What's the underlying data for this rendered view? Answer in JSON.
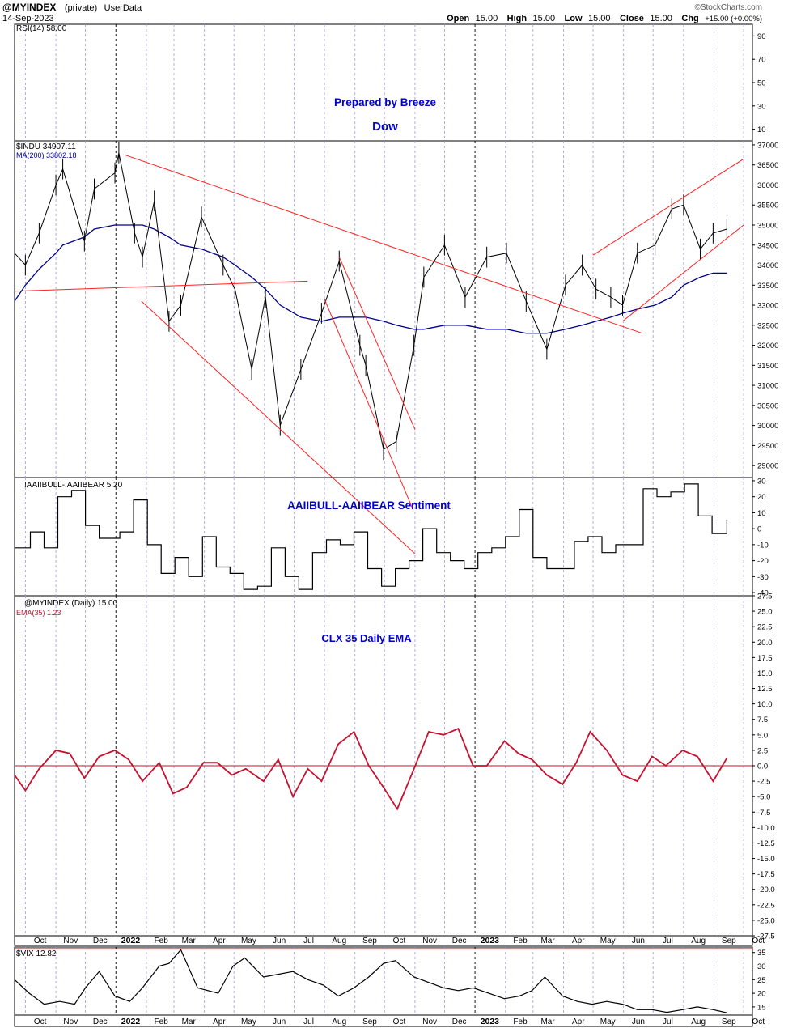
{
  "header": {
    "symbol": "@MYINDEX",
    "mode": "(private)",
    "source": "UserData",
    "date": "14-Sep-2023",
    "ohlc": [
      {
        "label": "Open",
        "value": "15.00"
      },
      {
        "label": "High",
        "value": "15.00"
      },
      {
        "label": "Low",
        "value": "15.00"
      },
      {
        "label": "Close",
        "value": "15.00"
      },
      {
        "label": "Chg",
        "value": "+15.00 (+0.00%)"
      }
    ],
    "watermark": "©StockCharts.com"
  },
  "colors": {
    "price": "#000000",
    "ma": "#00008b",
    "trendline": "#ff2020",
    "ema": "#c8102e",
    "note": "#0000cc",
    "grid_month": "#9a9ad8",
    "grid_year": "#000000"
  },
  "time_axis": {
    "months": [
      "Oct",
      "Nov",
      "Dec",
      "2022",
      "Feb",
      "Mar",
      "Apr",
      "May",
      "Jun",
      "Jul",
      "Aug",
      "Sep",
      "Oct",
      "Nov",
      "Dec",
      "2023",
      "Feb",
      "Mar",
      "Apr",
      "May",
      "Jun",
      "Jul",
      "Aug",
      "Sep",
      "Oct"
    ],
    "start": "2021-09-20",
    "end": "2023-10-10"
  },
  "chart_data": [
    {
      "type": "line",
      "panel": "rsi",
      "legend": "RSI(14) 58.00",
      "ytick_labels": [
        "90",
        "70",
        "50",
        "30",
        "10"
      ],
      "ylim": [
        0,
        100
      ],
      "annotations": [
        "Prepared by Breeze",
        "Dow"
      ],
      "series": []
    },
    {
      "type": "line",
      "panel": "price",
      "legend": [
        "$INDU 34907.11",
        "MA(200) 33802.18"
      ],
      "ytick_labels": [
        "37000",
        "36500",
        "36000",
        "35500",
        "35000",
        "34500",
        "34000",
        "33500",
        "33000",
        "32500",
        "32000",
        "31500",
        "31000",
        "30500",
        "30000",
        "29500",
        "29000"
      ],
      "ylim": [
        28700,
        37100
      ],
      "x": [
        "2021-09-20",
        "2021-10-01",
        "2021-10-15",
        "2021-11-01",
        "2021-11-08",
        "2021-11-30",
        "2021-12-10",
        "2021-12-31",
        "2022-01-04",
        "2022-01-20",
        "2022-01-28",
        "2022-02-09",
        "2022-02-24",
        "2022-03-08",
        "2022-03-29",
        "2022-04-20",
        "2022-05-02",
        "2022-05-19",
        "2022-06-02",
        "2022-06-17",
        "2022-07-08",
        "2022-07-29",
        "2022-08-16",
        "2022-09-06",
        "2022-09-12",
        "2022-09-30",
        "2022-10-13",
        "2022-10-31",
        "2022-11-10",
        "2022-12-01",
        "2022-12-22",
        "2023-01-13",
        "2023-02-02",
        "2023-02-22",
        "2023-03-15",
        "2023-04-03",
        "2023-04-20",
        "2023-05-04",
        "2023-05-19",
        "2023-05-31",
        "2023-06-15",
        "2023-07-03",
        "2023-07-20",
        "2023-08-01",
        "2023-08-18",
        "2023-08-31",
        "2023-09-14"
      ],
      "series": [
        {
          "name": "$INDU",
          "values": [
            34300,
            34000,
            34800,
            36000,
            36400,
            34600,
            35900,
            36300,
            36800,
            34800,
            34200,
            35600,
            32600,
            33000,
            35200,
            34000,
            33400,
            31400,
            33200,
            30000,
            31400,
            32800,
            34100,
            32000,
            31500,
            29400,
            29600,
            32000,
            33700,
            34500,
            33200,
            34200,
            34300,
            33100,
            31900,
            33500,
            34000,
            33400,
            33200,
            33000,
            34300,
            34500,
            35400,
            35500,
            34400,
            34800,
            34900
          ]
        },
        {
          "name": "MA(200)",
          "values": [
            33100,
            33500,
            33900,
            34300,
            34500,
            34700,
            34900,
            35000,
            35000,
            35000,
            35000,
            34900,
            34700,
            34500,
            34400,
            34200,
            34000,
            33700,
            33400,
            33000,
            32700,
            32600,
            32700,
            32700,
            32700,
            32600,
            32500,
            32400,
            32400,
            32500,
            32500,
            32400,
            32400,
            32300,
            32300,
            32400,
            32500,
            32600,
            32700,
            32800,
            32900,
            33000,
            33200,
            33500,
            33700,
            33800,
            33800
          ]
        }
      ]
    },
    {
      "type": "line",
      "panel": "sentiment",
      "legend": "!AAIIBULL-!AAIIBEAR 5.20",
      "ytick_labels": [
        "30",
        "20",
        "10",
        "0",
        "-10",
        "-20",
        "-30",
        "-40"
      ],
      "ylim": [
        -42,
        32
      ],
      "annotations": [
        "AAIIBULL-AAIIBEAR Sentiment"
      ],
      "x": [
        "2021-09-20",
        "2021-10-06",
        "2021-10-20",
        "2021-11-03",
        "2021-11-17",
        "2021-12-01",
        "2021-12-15",
        "2022-01-05",
        "2022-01-19",
        "2022-02-02",
        "2022-02-16",
        "2022-03-02",
        "2022-03-16",
        "2022-03-30",
        "2022-04-13",
        "2022-04-27",
        "2022-05-11",
        "2022-05-25",
        "2022-06-08",
        "2022-06-22",
        "2022-07-06",
        "2022-07-20",
        "2022-08-03",
        "2022-08-17",
        "2022-08-31",
        "2022-09-14",
        "2022-09-28",
        "2022-10-12",
        "2022-10-26",
        "2022-11-09",
        "2022-11-23",
        "2022-12-07",
        "2022-12-21",
        "2023-01-04",
        "2023-01-18",
        "2023-02-01",
        "2023-02-15",
        "2023-03-01",
        "2023-03-15",
        "2023-03-29",
        "2023-04-12",
        "2023-04-26",
        "2023-05-10",
        "2023-05-24",
        "2023-06-07",
        "2023-06-21",
        "2023-07-05",
        "2023-07-19",
        "2023-08-02",
        "2023-08-16",
        "2023-08-30",
        "2023-09-14"
      ],
      "series": [
        {
          "name": "AAIIBULL-AAIIBEAR",
          "values": [
            -12,
            -2,
            -12,
            20,
            24,
            2,
            -6,
            -2,
            18,
            -10,
            -28,
            -18,
            -30,
            -5,
            -24,
            -28,
            -38,
            -36,
            -12,
            -30,
            -38,
            -15,
            -7,
            -10,
            -2,
            -25,
            -36,
            -25,
            -20,
            0,
            -15,
            -20,
            -25,
            -15,
            -12,
            -5,
            12,
            -18,
            -25,
            -25,
            -8,
            -5,
            -15,
            -10,
            -10,
            25,
            20,
            23,
            28,
            8,
            -3,
            5.2
          ]
        }
      ]
    },
    {
      "type": "line",
      "panel": "ema",
      "legend": [
        "@MYINDEX (Daily) 15.00",
        "EMA(35) 1.23"
      ],
      "ytick_labels": [
        "27.5",
        "25.0",
        "22.5",
        "20.0",
        "17.5",
        "15.0",
        "12.5",
        "10.0",
        "7.5",
        "5.0",
        "2.5",
        "0.0",
        "-2.5",
        "-5.0",
        "-7.5",
        "-10.0",
        "-12.5",
        "-15.0",
        "-17.5",
        "-20.0",
        "-22.5",
        "-25.0",
        "-27.5"
      ],
      "ylim": [
        -27.5,
        27.5
      ],
      "annotations": [
        "CLX 35 Daily EMA"
      ],
      "x": [
        "2021-09-20",
        "2021-10-01",
        "2021-10-15",
        "2021-11-01",
        "2021-11-15",
        "2021-11-30",
        "2021-12-15",
        "2021-12-31",
        "2022-01-14",
        "2022-01-28",
        "2022-02-14",
        "2022-02-28",
        "2022-03-14",
        "2022-03-31",
        "2022-04-14",
        "2022-04-29",
        "2022-05-13",
        "2022-05-31",
        "2022-06-15",
        "2022-06-30",
        "2022-07-15",
        "2022-07-29",
        "2022-08-15",
        "2022-08-31",
        "2022-09-15",
        "2022-09-30",
        "2022-10-14",
        "2022-10-31",
        "2022-11-15",
        "2022-11-30",
        "2022-12-15",
        "2022-12-30",
        "2023-01-13",
        "2023-01-31",
        "2023-02-14",
        "2023-02-28",
        "2023-03-15",
        "2023-03-31",
        "2023-04-14",
        "2023-04-28",
        "2023-05-15",
        "2023-05-31",
        "2023-06-15",
        "2023-06-30",
        "2023-07-14",
        "2023-07-31",
        "2023-08-15",
        "2023-08-31",
        "2023-09-14"
      ],
      "series": [
        {
          "name": "EMA(35)",
          "values": [
            -1.5,
            -4.0,
            -0.5,
            2.5,
            2.0,
            -2.0,
            1.5,
            2.5,
            1.0,
            -2.5,
            0.5,
            -4.5,
            -3.5,
            0.5,
            0.5,
            -1.5,
            -0.5,
            -2.5,
            1.0,
            -5.0,
            -0.5,
            -2.5,
            3.5,
            5.5,
            0.0,
            -3.5,
            -7.0,
            -0.5,
            5.5,
            5.0,
            6.0,
            0.0,
            0.0,
            4.0,
            2.0,
            1.0,
            -1.5,
            -3.0,
            0.5,
            5.5,
            2.5,
            -1.5,
            -2.5,
            1.5,
            0.0,
            2.5,
            1.5,
            -2.5,
            1.23
          ]
        }
      ]
    },
    {
      "type": "line",
      "panel": "vix",
      "legend": "$VIX 12.82",
      "ytick_labels": [
        "35",
        "30",
        "25",
        "20",
        "15"
      ],
      "ylim": [
        12,
        37
      ],
      "x": [
        "2021-09-20",
        "2021-10-05",
        "2021-10-20",
        "2021-11-05",
        "2021-11-20",
        "2021-12-01",
        "2021-12-15",
        "2021-12-31",
        "2022-01-15",
        "2022-01-28",
        "2022-02-14",
        "2022-02-24",
        "2022-03-08",
        "2022-03-25",
        "2022-04-15",
        "2022-04-30",
        "2022-05-12",
        "2022-05-31",
        "2022-06-15",
        "2022-06-30",
        "2022-07-15",
        "2022-07-31",
        "2022-08-15",
        "2022-08-31",
        "2022-09-15",
        "2022-09-30",
        "2022-10-12",
        "2022-10-31",
        "2022-11-15",
        "2022-11-30",
        "2022-12-15",
        "2022-12-30",
        "2023-01-15",
        "2023-01-31",
        "2023-02-15",
        "2023-02-28",
        "2023-03-13",
        "2023-03-31",
        "2023-04-15",
        "2023-04-30",
        "2023-05-15",
        "2023-05-31",
        "2023-06-15",
        "2023-06-30",
        "2023-07-15",
        "2023-07-31",
        "2023-08-15",
        "2023-08-31",
        "2023-09-14"
      ],
      "series": [
        {
          "name": "$VIX",
          "values": [
            25,
            20,
            16,
            17,
            16,
            22,
            28,
            19,
            17,
            22,
            30,
            31,
            36,
            22,
            20,
            30,
            33,
            26,
            27,
            28,
            25,
            23,
            19,
            22,
            26,
            31,
            32,
            26,
            24,
            22,
            21,
            22,
            20,
            18,
            19,
            21,
            26,
            19,
            17,
            16,
            17,
            16,
            14,
            14,
            13,
            14,
            15,
            14,
            12.82
          ]
        }
      ]
    }
  ]
}
